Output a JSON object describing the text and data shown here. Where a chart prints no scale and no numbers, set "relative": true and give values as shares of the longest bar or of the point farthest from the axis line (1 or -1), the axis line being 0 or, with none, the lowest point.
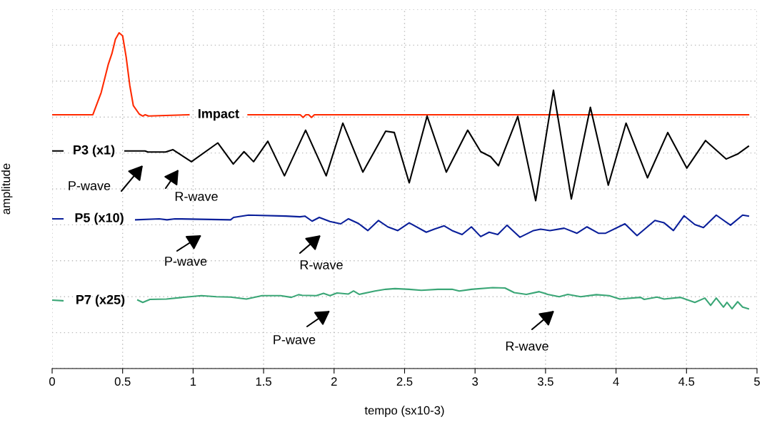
{
  "chart_data": {
    "type": "line",
    "relative": true,
    "xlabel": "tempo (sx10-3)",
    "ylabel": "amplitude",
    "xlim": [
      0,
      5
    ],
    "xticks": [
      0,
      0.5,
      1,
      1.5,
      2,
      2.5,
      3,
      3.5,
      4,
      4.5,
      5
    ],
    "grid": true,
    "legend": false,
    "marker": "none",
    "line_style": "solid",
    "series": [
      {
        "name": "Impact",
        "color": "#ff2a00",
        "x": [
          0,
          0.289,
          0.348,
          0.399,
          0.424,
          0.449,
          0.475,
          0.5,
          0.525,
          0.551,
          0.576,
          0.618,
          0.643,
          0.66,
          0.684,
          0.97,
          1.18,
          1.39,
          1.76,
          1.78,
          1.8,
          1.82,
          1.84,
          1.86,
          4.94
        ],
        "values": [
          0.756,
          0.756,
          0.822,
          0.907,
          0.938,
          0.981,
          1.0,
          0.991,
          0.928,
          0.843,
          0.783,
          0.758,
          0.752,
          0.756,
          0.752,
          0.756,
          null,
          0.756,
          0.756,
          0.748,
          0.756,
          0.756,
          0.748,
          0.756,
          0.756
        ]
      },
      {
        "name": "P3 (x1)",
        "color": "#000000",
        "x": [
          0,
          0.076,
          0.3,
          0.517,
          0.659,
          0.679,
          0.805,
          0.856,
          0.988,
          1.175,
          1.285,
          1.361,
          1.429,
          1.53,
          1.648,
          1.798,
          1.944,
          2.062,
          2.204,
          2.366,
          2.427,
          2.533,
          2.66,
          2.796,
          2.948,
          3.04,
          3.11,
          3.166,
          3.303,
          3.43,
          3.556,
          3.683,
          3.818,
          3.945,
          4.071,
          4.223,
          4.367,
          4.502,
          4.635,
          4.781,
          4.863,
          4.939
        ],
        "values": [
          0.648,
          0.648,
          null,
          0.648,
          0.648,
          0.645,
          0.645,
          0.652,
          0.616,
          0.672,
          0.609,
          0.646,
          0.616,
          0.677,
          0.574,
          0.71,
          0.574,
          0.731,
          0.585,
          0.707,
          0.703,
          0.553,
          0.752,
          0.585,
          0.71,
          0.646,
          0.631,
          0.604,
          0.751,
          0.5,
          0.829,
          0.505,
          0.778,
          0.546,
          0.731,
          0.568,
          0.703,
          0.597,
          0.679,
          0.624,
          0.639,
          0.662
        ]
      },
      {
        "name": "P5 (x10)",
        "color": "#0a1f9a",
        "x": [
          0,
          0.076,
          0.33,
          0.593,
          0.76,
          0.815,
          0.871,
          1.266,
          1.287,
          1.393,
          1.657,
          1.758,
          1.793,
          1.844,
          1.895,
          1.971,
          2.047,
          2.102,
          2.173,
          2.239,
          2.315,
          2.381,
          2.452,
          2.533,
          2.654,
          2.71,
          2.781,
          2.837,
          2.908,
          2.974,
          3.04,
          3.1,
          3.161,
          3.227,
          3.318,
          3.415,
          3.465,
          3.531,
          3.632,
          3.723,
          3.794,
          3.875,
          3.926,
          4.063,
          4.149,
          4.276,
          4.341,
          4.407,
          4.483,
          4.559,
          4.62,
          4.711,
          4.812,
          4.898,
          4.939
        ],
        "values": [
          0.446,
          0.446,
          null,
          0.443,
          0.446,
          0.443,
          0.446,
          0.443,
          0.45,
          0.457,
          0.454,
          0.452,
          0.454,
          0.439,
          0.45,
          0.438,
          0.431,
          0.446,
          0.432,
          0.411,
          0.441,
          0.422,
          0.411,
          0.434,
          0.406,
          0.415,
          0.425,
          0.411,
          0.399,
          0.422,
          0.393,
          0.406,
          0.399,
          0.427,
          0.391,
          0.411,
          0.415,
          0.411,
          0.418,
          0.403,
          0.422,
          0.403,
          0.403,
          0.431,
          0.396,
          0.441,
          0.434,
          0.411,
          0.455,
          0.429,
          0.42,
          0.457,
          0.427,
          0.457,
          0.454
        ]
      },
      {
        "name": "P7 (x25)",
        "color": "#3aa676",
        "x": [
          0,
          0.076,
          0.34,
          0.608,
          0.643,
          0.694,
          0.811,
          0.947,
          1.059,
          1.165,
          1.266,
          1.378,
          1.489,
          1.621,
          1.697,
          1.748,
          1.773,
          1.874,
          1.925,
          1.971,
          2.021,
          2.102,
          2.138,
          2.178,
          2.29,
          2.366,
          2.432,
          2.533,
          2.619,
          2.736,
          2.837,
          2.888,
          2.974,
          3.125,
          3.212,
          3.278,
          3.364,
          3.455,
          3.516,
          3.597,
          3.658,
          3.749,
          3.86,
          3.951,
          4.027,
          4.174,
          4.2,
          4.291,
          4.341,
          4.458,
          4.559,
          4.63,
          4.671,
          4.711,
          4.762,
          4.787,
          4.823,
          4.863,
          4.898,
          4.939
        ],
        "values": [
          0.204,
          0.202,
          null,
          0.204,
          0.197,
          0.206,
          0.207,
          0.213,
          0.217,
          0.214,
          0.213,
          0.207,
          0.217,
          0.217,
          0.212,
          0.22,
          0.218,
          0.217,
          0.224,
          0.217,
          0.225,
          0.222,
          0.231,
          0.221,
          0.231,
          0.236,
          0.238,
          0.236,
          0.233,
          0.236,
          0.236,
          0.231,
          0.236,
          0.241,
          0.24,
          0.226,
          0.221,
          0.229,
          0.221,
          0.214,
          0.221,
          0.214,
          0.22,
          0.217,
          0.207,
          0.212,
          0.206,
          0.213,
          0.207,
          0.212,
          0.197,
          0.21,
          0.188,
          0.21,
          0.183,
          0.197,
          0.178,
          0.199,
          0.183,
          0.178
        ]
      }
    ],
    "annotations": [
      "P-wave",
      "R-wave",
      "P-wave",
      "R-wave",
      "P-wave",
      "R-wave"
    ]
  }
}
